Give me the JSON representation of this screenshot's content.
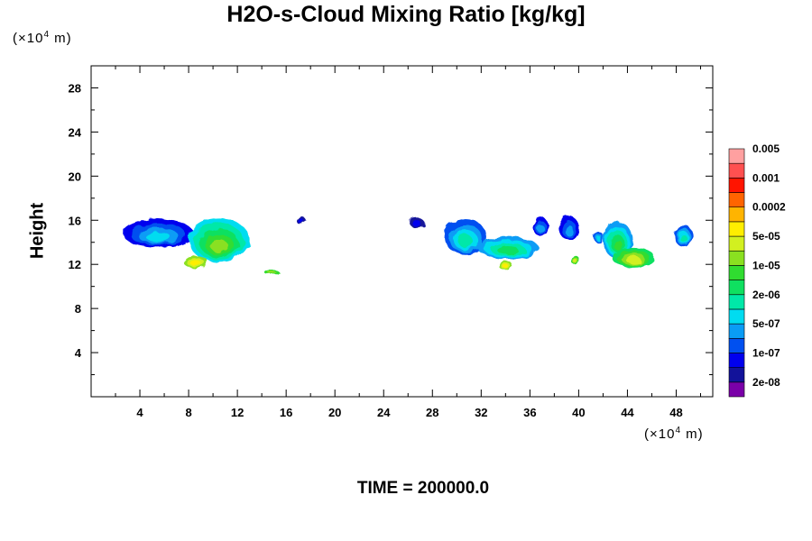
{
  "chart_data": {
    "type": "heatmap",
    "title": "H2O-s-Cloud Mixing Ratio [kg/kg]",
    "ylabel": "Height",
    "xlabel": "",
    "x_unit_prefix": "(×10",
    "x_unit_exp": "4",
    "x_unit_suffix": " m)",
    "y_unit_prefix": "(×10",
    "y_unit_exp": "4",
    "y_unit_suffix": " m)",
    "xlim": [
      0,
      51
    ],
    "ylim": [
      0,
      30
    ],
    "x_ticks": [
      4,
      8,
      12,
      16,
      20,
      24,
      28,
      32,
      36,
      40,
      44,
      48
    ],
    "y_ticks": [
      4,
      8,
      12,
      16,
      20,
      24,
      28
    ],
    "grid": false,
    "legend_position": "right",
    "colorbar": {
      "colors": [
        "#7a00a8",
        "#12129a",
        "#0000ee",
        "#0050f0",
        "#0a9cf5",
        "#00dcf0",
        "#00e8a8",
        "#0fe060",
        "#30dc30",
        "#8ae020",
        "#d2f020",
        "#ffee00",
        "#ffb400",
        "#ff6400",
        "#ff1400",
        "#ff5050",
        "#ffa0a0"
      ],
      "labels": [
        "2e-08",
        "1e-07",
        "5e-07",
        "2e-06",
        "1e-05",
        "5e-05",
        "0.0002",
        "0.001",
        "0.005"
      ]
    },
    "clouds": [
      {
        "x": 5.5,
        "y": 14.8,
        "w": 5.8,
        "h": 2.6,
        "level": 2,
        "core": 5
      },
      {
        "x": 10.5,
        "y": 14.2,
        "w": 5.0,
        "h": 4.0,
        "level": 5,
        "core": 9
      },
      {
        "x": 8.6,
        "y": 12.2,
        "w": 2.0,
        "h": 1.2,
        "level": 9,
        "core": 11
      },
      {
        "x": 14.8,
        "y": 11.3,
        "w": 1.2,
        "h": 0.5,
        "level": 8,
        "core": 9
      },
      {
        "x": 17.2,
        "y": 16.0,
        "w": 0.8,
        "h": 0.7,
        "level": 1,
        "core": 2
      },
      {
        "x": 26.7,
        "y": 15.8,
        "w": 1.2,
        "h": 0.9,
        "level": 1,
        "core": 2
      },
      {
        "x": 30.7,
        "y": 14.5,
        "w": 3.5,
        "h": 3.2,
        "level": 3,
        "core": 6
      },
      {
        "x": 34.2,
        "y": 13.5,
        "w": 5.0,
        "h": 2.0,
        "level": 4,
        "core": 7
      },
      {
        "x": 34.0,
        "y": 11.9,
        "w": 1.2,
        "h": 0.7,
        "level": 9,
        "core": 11
      },
      {
        "x": 39.2,
        "y": 15.3,
        "w": 1.6,
        "h": 2.2,
        "level": 2,
        "core": 4
      },
      {
        "x": 43.2,
        "y": 14.2,
        "w": 2.5,
        "h": 3.3,
        "level": 4,
        "core": 8
      },
      {
        "x": 44.5,
        "y": 12.6,
        "w": 3.5,
        "h": 1.8,
        "level": 7,
        "core": 10
      },
      {
        "x": 48.6,
        "y": 14.6,
        "w": 1.5,
        "h": 2.0,
        "level": 3,
        "core": 6
      },
      {
        "x": 36.9,
        "y": 15.4,
        "w": 1.2,
        "h": 1.8,
        "level": 2,
        "core": 4
      },
      {
        "x": 41.6,
        "y": 14.5,
        "w": 0.8,
        "h": 1.0,
        "level": 3,
        "core": 5
      },
      {
        "x": 39.7,
        "y": 12.4,
        "w": 0.6,
        "h": 0.9,
        "level": 8,
        "core": 10
      }
    ]
  },
  "footer": {
    "time_label": "TIME = 200000.0"
  }
}
